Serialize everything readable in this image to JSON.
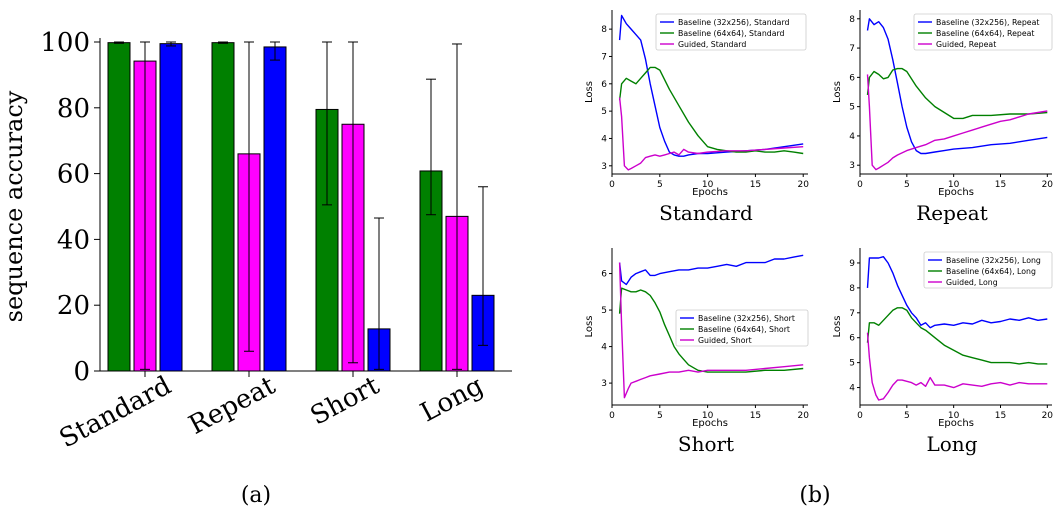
{
  "captions": {
    "a": "(a)",
    "b": "(b)"
  },
  "chart_data": [
    {
      "type": "bar",
      "ylabel": "sequence accuracy",
      "ylim": [
        0,
        100
      ],
      "yticks": [
        0,
        20,
        40,
        60,
        80,
        100
      ],
      "categories": [
        "Standard",
        "Repeat",
        "Short",
        "Long"
      ],
      "series": [
        {
          "color": "#008000",
          "values": [
            99.8,
            99.8,
            79.5,
            60.8
          ],
          "err_low": [
            99.6,
            99.6,
            50.5,
            47.5
          ],
          "err_high": [
            100,
            100,
            100,
            88.7
          ]
        },
        {
          "color": "#ff00ff",
          "values": [
            94.2,
            66.0,
            75.0,
            47.0
          ],
          "err_low": [
            0.5,
            6.0,
            2.5,
            0.5
          ],
          "err_high": [
            100,
            100,
            100,
            99.4
          ]
        },
        {
          "color": "#0000ff",
          "values": [
            99.5,
            98.5,
            12.8,
            23.0
          ],
          "err_low": [
            98.8,
            94.5,
            0.5,
            7.8
          ],
          "err_high": [
            100,
            100,
            46.5,
            56.0
          ]
        }
      ]
    },
    {
      "type": "line",
      "title": "Standard",
      "xlabel": "Epochs",
      "ylabel": "Loss",
      "xlim": [
        0,
        20.5
      ],
      "ylim": [
        2.7,
        8.7
      ],
      "xticks": [
        0,
        5,
        10,
        15,
        20
      ],
      "yticks": [
        3,
        4,
        5,
        6,
        7,
        8
      ],
      "series": [
        {
          "name": "Baseline (32x256), Standard",
          "color": "#0000ff",
          "x": [
            0.8,
            1,
            1.5,
            2,
            2.5,
            3,
            3.5,
            4,
            4.5,
            5,
            5.5,
            6,
            6.5,
            7,
            7.5,
            8,
            9,
            10,
            12,
            14,
            16,
            18,
            20
          ],
          "y": [
            7.6,
            8.5,
            8.2,
            8.0,
            7.8,
            7.6,
            6.9,
            6.0,
            5.2,
            4.4,
            3.9,
            3.5,
            3.4,
            3.35,
            3.35,
            3.4,
            3.45,
            3.45,
            3.5,
            3.55,
            3.6,
            3.7,
            3.8
          ]
        },
        {
          "name": "Baseline (64x64), Standard",
          "color": "#008000",
          "x": [
            0.8,
            1,
            1.5,
            2,
            2.5,
            3,
            3.5,
            4,
            4.5,
            5,
            6,
            7,
            8,
            9,
            10,
            11,
            12,
            13,
            14,
            15,
            16,
            17,
            18,
            19,
            20
          ],
          "y": [
            5.4,
            6.0,
            6.2,
            6.1,
            6.0,
            6.2,
            6.4,
            6.6,
            6.6,
            6.5,
            5.8,
            5.2,
            4.6,
            4.1,
            3.7,
            3.6,
            3.55,
            3.5,
            3.5,
            3.55,
            3.5,
            3.5,
            3.55,
            3.5,
            3.45
          ]
        },
        {
          "name": "Guided, Standard",
          "color": "#cc00cc",
          "x": [
            0.8,
            1,
            1.3,
            1.7,
            2,
            2.5,
            3,
            3.5,
            4,
            4.5,
            5,
            5.5,
            6,
            6.5,
            7,
            7.5,
            8,
            9,
            10,
            12,
            14,
            16,
            18,
            20
          ],
          "y": [
            5.5,
            4.8,
            3.0,
            2.85,
            2.9,
            3.0,
            3.1,
            3.3,
            3.35,
            3.4,
            3.35,
            3.4,
            3.45,
            3.5,
            3.4,
            3.6,
            3.5,
            3.45,
            3.5,
            3.55,
            3.55,
            3.6,
            3.65,
            3.7
          ]
        }
      ]
    },
    {
      "type": "line",
      "title": "Repeat",
      "xlabel": "Epochs",
      "ylabel": "Loss",
      "xlim": [
        0,
        20.5
      ],
      "ylim": [
        2.7,
        8.3
      ],
      "xticks": [
        0,
        5,
        10,
        15,
        20
      ],
      "yticks": [
        3,
        4,
        5,
        6,
        7,
        8
      ],
      "series": [
        {
          "name": "Baseline (32x256), Repeat",
          "color": "#0000ff",
          "x": [
            0.8,
            1,
            1.5,
            2,
            2.5,
            3,
            3.5,
            4,
            4.5,
            5,
            5.5,
            6,
            6.5,
            7,
            8,
            9,
            10,
            12,
            14,
            16,
            18,
            20
          ],
          "y": [
            7.6,
            8.0,
            7.8,
            7.9,
            7.7,
            7.3,
            6.6,
            5.8,
            5.0,
            4.3,
            3.8,
            3.5,
            3.4,
            3.4,
            3.45,
            3.5,
            3.55,
            3.6,
            3.7,
            3.75,
            3.85,
            3.95
          ]
        },
        {
          "name": "Baseline (64x64), Repeat",
          "color": "#008000",
          "x": [
            0.8,
            1,
            1.5,
            2,
            2.5,
            3,
            3.5,
            4,
            4.5,
            5,
            6,
            7,
            8,
            9,
            10,
            11,
            12,
            14,
            16,
            18,
            20
          ],
          "y": [
            5.4,
            6.0,
            6.2,
            6.1,
            5.95,
            6.0,
            6.25,
            6.3,
            6.3,
            6.2,
            5.7,
            5.3,
            5.0,
            4.8,
            4.6,
            4.6,
            4.7,
            4.7,
            4.75,
            4.75,
            4.8
          ]
        },
        {
          "name": "Guided, Repeat",
          "color": "#cc00cc",
          "x": [
            0.8,
            1,
            1.3,
            1.7,
            2,
            2.5,
            3,
            3.5,
            4,
            5,
            6,
            7,
            8,
            9,
            10,
            11,
            12,
            13,
            14,
            15,
            16,
            17,
            18,
            19,
            20
          ],
          "y": [
            6.1,
            5.0,
            3.0,
            2.85,
            2.9,
            3.0,
            3.1,
            3.25,
            3.35,
            3.5,
            3.6,
            3.7,
            3.85,
            3.9,
            4.0,
            4.1,
            4.2,
            4.3,
            4.4,
            4.5,
            4.55,
            4.65,
            4.75,
            4.8,
            4.85
          ]
        }
      ]
    },
    {
      "type": "line",
      "title": "Short",
      "xlabel": "Epochs",
      "ylabel": "Loss",
      "xlim": [
        0,
        20.5
      ],
      "ylim": [
        2.4,
        6.7
      ],
      "xticks": [
        0,
        5,
        10,
        15,
        20
      ],
      "yticks": [
        3,
        4,
        5,
        6
      ],
      "series": [
        {
          "name": "Baseline (32x256), Short",
          "color": "#0000ff",
          "x": [
            0.8,
            1,
            1.5,
            2,
            2.5,
            3,
            3.5,
            4,
            4.5,
            5,
            6,
            7,
            8,
            9,
            10,
            11,
            12,
            13,
            14,
            15,
            16,
            17,
            18,
            19,
            20
          ],
          "y": [
            6.3,
            5.8,
            5.7,
            5.9,
            6.0,
            6.05,
            6.1,
            5.95,
            5.95,
            6.0,
            6.05,
            6.1,
            6.1,
            6.15,
            6.15,
            6.2,
            6.25,
            6.2,
            6.3,
            6.3,
            6.3,
            6.4,
            6.4,
            6.45,
            6.5
          ]
        },
        {
          "name": "Baseline (64x64), Short",
          "color": "#008000",
          "x": [
            0.8,
            1,
            1.5,
            2,
            2.5,
            3,
            3.5,
            4,
            4.5,
            5,
            5.5,
            6,
            6.5,
            7,
            7.5,
            8,
            9,
            10,
            11,
            12,
            14,
            16,
            18,
            20
          ],
          "y": [
            4.9,
            5.6,
            5.55,
            5.5,
            5.5,
            5.55,
            5.5,
            5.4,
            5.2,
            4.95,
            4.6,
            4.3,
            4.0,
            3.8,
            3.65,
            3.5,
            3.35,
            3.3,
            3.3,
            3.3,
            3.3,
            3.35,
            3.35,
            3.4
          ]
        },
        {
          "name": "Guided, Short",
          "color": "#cc00cc",
          "x": [
            0.8,
            1,
            1.3,
            1.7,
            2,
            2.5,
            3,
            3.5,
            4,
            5,
            6,
            7,
            8,
            9,
            10,
            12,
            14,
            16,
            18,
            20
          ],
          "y": [
            6.3,
            4.6,
            2.6,
            2.85,
            3.0,
            3.05,
            3.1,
            3.15,
            3.2,
            3.25,
            3.3,
            3.3,
            3.35,
            3.3,
            3.35,
            3.35,
            3.35,
            3.4,
            3.45,
            3.5
          ]
        }
      ]
    },
    {
      "type": "line",
      "title": "Long",
      "xlabel": "Epochs",
      "ylabel": "Loss",
      "xlim": [
        0,
        20.5
      ],
      "ylim": [
        3.3,
        9.6
      ],
      "xticks": [
        0,
        5,
        10,
        15,
        20
      ],
      "yticks": [
        4,
        5,
        6,
        7,
        8,
        9
      ],
      "series": [
        {
          "name": "Baseline (32x256), Long",
          "color": "#0000ff",
          "x": [
            0.8,
            1,
            1.5,
            2,
            2.5,
            3,
            3.5,
            4,
            4.5,
            5,
            5.5,
            6,
            6.5,
            7,
            7.5,
            8,
            9,
            10,
            11,
            12,
            13,
            14,
            15,
            16,
            17,
            18,
            19,
            20
          ],
          "y": [
            8.0,
            9.2,
            9.2,
            9.2,
            9.25,
            9.0,
            8.6,
            8.1,
            7.7,
            7.3,
            7.0,
            6.8,
            6.5,
            6.6,
            6.4,
            6.5,
            6.55,
            6.5,
            6.6,
            6.55,
            6.7,
            6.6,
            6.65,
            6.75,
            6.7,
            6.8,
            6.7,
            6.75
          ]
        },
        {
          "name": "Baseline (64x64), Long",
          "color": "#008000",
          "x": [
            0.8,
            1,
            1.5,
            2,
            2.5,
            3,
            3.5,
            4,
            4.5,
            5,
            5.5,
            6,
            6.5,
            7,
            8,
            9,
            10,
            11,
            12,
            13,
            14,
            15,
            16,
            17,
            18,
            19,
            20
          ],
          "y": [
            5.8,
            6.6,
            6.6,
            6.5,
            6.7,
            6.9,
            7.1,
            7.2,
            7.2,
            7.1,
            6.8,
            6.6,
            6.4,
            6.3,
            6.0,
            5.7,
            5.5,
            5.3,
            5.2,
            5.1,
            5.0,
            5.0,
            5.0,
            4.95,
            5.0,
            4.95,
            4.95
          ]
        },
        {
          "name": "Guided, Long",
          "color": "#cc00cc",
          "x": [
            0.8,
            1,
            1.3,
            1.7,
            2,
            2.5,
            3,
            3.5,
            4,
            4.5,
            5,
            5.5,
            6,
            6.5,
            7,
            7.5,
            8,
            9,
            10,
            11,
            12,
            13,
            14,
            15,
            16,
            17,
            18,
            19,
            20
          ],
          "y": [
            6.2,
            5.2,
            4.2,
            3.7,
            3.5,
            3.55,
            3.8,
            4.1,
            4.3,
            4.3,
            4.25,
            4.2,
            4.1,
            4.2,
            4.05,
            4.4,
            4.1,
            4.1,
            4.0,
            4.15,
            4.1,
            4.05,
            4.15,
            4.2,
            4.1,
            4.2,
            4.15,
            4.15,
            4.15
          ]
        }
      ]
    }
  ]
}
